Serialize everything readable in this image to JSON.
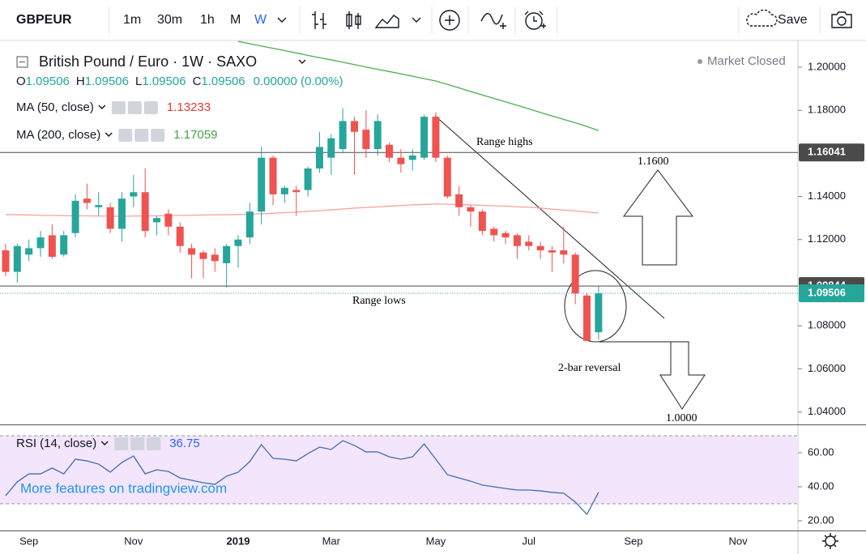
{
  "toolbar": {
    "symbol": "GBPEUR",
    "intervals": [
      "1m",
      "30m",
      "1h",
      "M",
      "W"
    ],
    "save": "Save"
  },
  "chart_data": [
    {
      "type": "candlestick",
      "title": "British Pound / Euro · 1W · SAXO",
      "status": "Market Closed",
      "ohlc_legend": [
        {
          "label": "O",
          "value": "1.09506"
        },
        {
          "label": "H",
          "value": "1.09506"
        },
        {
          "label": "L",
          "value": "1.09506"
        },
        {
          "label": "C",
          "value": "1.09506"
        }
      ],
      "change": "0.00000 (0.00%)",
      "categories": [
        null,
        null,
        "Sep",
        null,
        null,
        null,
        null,
        null,
        null,
        null,
        null,
        "Nov",
        null,
        null,
        null,
        null,
        null,
        null,
        null,
        null,
        "2019",
        null,
        null,
        null,
        null,
        null,
        null,
        null,
        "Mar",
        null,
        null,
        null,
        null,
        null,
        null,
        null,
        null,
        "May",
        null,
        null,
        null,
        null,
        null,
        null,
        null,
        "Jul",
        null,
        null,
        null,
        null,
        null,
        null,
        null,
        null,
        "Sep",
        null,
        null,
        null,
        null,
        null,
        null,
        null,
        null,
        "Nov",
        null,
        null,
        null,
        null,
        null
      ],
      "open": [
        1.115,
        1.105,
        1.113,
        1.116,
        1.122,
        1.113,
        1.123,
        1.139,
        1.135,
        1.135,
        1.125,
        1.14,
        1.142,
        1.128,
        1.132,
        1.126,
        1.116,
        1.114,
        1.113,
        1.109,
        1.117,
        1.121,
        1.133,
        1.158,
        1.141,
        1.143,
        1.143,
        1.153,
        1.158,
        1.162,
        1.175,
        1.171,
        1.162,
        1.164,
        1.158,
        1.157,
        1.158,
        1.177,
        1.158,
        1.141,
        1.135,
        1.133,
        1.125,
        1.123,
        1.122,
        1.119,
        1.117,
        1.115,
        1.115,
        1.113,
        1.094,
        1.077,
        null,
        null,
        null,
        null,
        null,
        null,
        null,
        null,
        null,
        null,
        null,
        null,
        null,
        null,
        null,
        null,
        null
      ],
      "high": [
        1.118,
        1.118,
        1.12,
        1.124,
        1.127,
        1.124,
        1.141,
        1.146,
        1.142,
        1.137,
        1.142,
        1.15,
        1.153,
        1.131,
        1.134,
        1.128,
        1.118,
        1.115,
        1.116,
        1.118,
        1.122,
        1.137,
        1.163,
        1.159,
        1.145,
        1.145,
        1.154,
        1.17,
        1.169,
        1.181,
        1.177,
        1.18,
        1.178,
        1.165,
        1.162,
        1.162,
        1.178,
        1.179,
        1.159,
        1.145,
        1.136,
        1.134,
        1.126,
        1.124,
        1.123,
        1.122,
        1.119,
        1.117,
        1.126,
        1.114,
        1.095,
        1.0984,
        null,
        null,
        null,
        null,
        null,
        null,
        null,
        null,
        null,
        null,
        null,
        null,
        null,
        null,
        null,
        null,
        null
      ],
      "low": [
        1.103,
        1.1,
        1.11,
        1.112,
        1.111,
        1.112,
        1.121,
        1.134,
        1.131,
        1.123,
        1.119,
        1.135,
        1.121,
        1.122,
        1.122,
        1.114,
        1.102,
        1.102,
        1.105,
        1.0977,
        1.107,
        1.118,
        1.127,
        1.136,
        1.137,
        1.131,
        1.14,
        1.151,
        1.15,
        1.16,
        1.15,
        1.158,
        1.159,
        1.156,
        1.151,
        1.152,
        1.157,
        1.156,
        1.139,
        1.131,
        1.126,
        1.122,
        1.119,
        1.118,
        1.111,
        1.115,
        1.111,
        1.105,
        1.109,
        1.09,
        1.073,
        1.0735,
        null,
        null,
        null,
        null,
        null,
        null,
        null,
        null,
        null,
        null,
        null,
        null,
        null,
        null,
        null,
        null,
        null
      ],
      "close": [
        1.105,
        1.117,
        1.116,
        1.121,
        1.112,
        1.122,
        1.138,
        1.137,
        1.136,
        1.125,
        1.139,
        1.142,
        1.124,
        1.13,
        1.126,
        1.117,
        1.113,
        1.111,
        1.11,
        1.117,
        1.12,
        1.133,
        1.158,
        1.141,
        1.144,
        1.142,
        1.153,
        1.163,
        1.167,
        1.175,
        1.17,
        1.162,
        1.175,
        1.158,
        1.155,
        1.159,
        1.177,
        1.158,
        1.14,
        1.135,
        1.133,
        1.124,
        1.122,
        1.121,
        1.117,
        1.117,
        1.115,
        1.114,
        1.113,
        1.095,
        1.073,
        1.09506,
        null,
        null,
        null,
        null,
        null,
        null,
        null,
        null,
        null,
        null,
        null,
        null,
        null,
        null,
        null,
        null,
        null
      ],
      "up_color": "#26a69a",
      "down_color": "#ef5350",
      "series": [
        {
          "name": "MA (50, close)",
          "color": "#f4a29c",
          "label_color": "#e53935",
          "values": [
            1.1316,
            1.1315,
            1.1314,
            1.1313,
            1.1312,
            1.1311,
            1.131,
            1.131,
            1.1309,
            1.1309,
            1.1308,
            1.1309,
            1.131,
            1.131,
            1.1311,
            1.1312,
            1.1313,
            1.1314,
            1.1315,
            1.1315,
            1.1316,
            1.1318,
            1.132,
            1.1322,
            1.1325,
            1.1327,
            1.1331,
            1.1334,
            1.1338,
            1.1342,
            1.1346,
            1.1349,
            1.1352,
            1.1355,
            1.1358,
            1.1361,
            1.1363,
            1.1365,
            1.1364,
            1.1362,
            1.1361,
            1.1359,
            1.1357,
            1.1355,
            1.1352,
            1.135,
            1.1346,
            1.1341,
            1.1337,
            1.1333,
            1.1328,
            1.13233,
            null,
            null,
            null,
            null,
            null,
            null,
            null,
            null,
            null,
            null,
            null,
            null,
            null,
            null,
            null,
            null,
            null
          ]
        },
        {
          "name": "MA (200, close)",
          "color": "#4caf50",
          "label_color": "#43a047",
          "values": [
            null,
            null,
            null,
            null,
            null,
            null,
            null,
            null,
            null,
            null,
            null,
            null,
            null,
            null,
            null,
            null,
            null,
            null,
            null,
            null,
            1.212,
            1.2109,
            1.2098,
            1.2088,
            1.2077,
            1.2066,
            1.2055,
            1.2044,
            1.2034,
            1.2023,
            1.2012,
            1.2001,
            1.199,
            1.198,
            1.1969,
            1.1958,
            1.1947,
            1.1936,
            1.192,
            1.1904,
            1.1887,
            1.1871,
            1.1855,
            1.1839,
            1.1823,
            1.1807,
            1.179,
            1.1774,
            1.1758,
            1.1742,
            1.1725,
            1.17059,
            null,
            null,
            null,
            null,
            null,
            null,
            null,
            null,
            null,
            null,
            null,
            null,
            null,
            null,
            null,
            null,
            null
          ]
        }
      ],
      "price_lines": [
        {
          "value": 1.16041,
          "color": "#4a4a4a"
        },
        {
          "value": 1.09844,
          "color": "#4a4a4a"
        }
      ],
      "last_color": "#26a69a",
      "annotations": [
        "Range highs",
        "Range lows",
        "1.1600",
        "2-bar reversal",
        "1.0000"
      ],
      "ylim": [
        1.0342,
        1.2124
      ],
      "yticks": [
        {
          "value": 1.04,
          "label": "1.04000"
        },
        {
          "value": 1.06,
          "label": "1.06000"
        },
        {
          "value": 1.08,
          "label": "1.08000"
        },
        {
          "value": 1.12,
          "label": "1.12000"
        },
        {
          "value": 1.14,
          "label": "1.14000"
        },
        {
          "value": 1.18,
          "label": "1.18000"
        },
        {
          "value": 1.2,
          "label": "1.20000"
        }
      ],
      "grid": false
    },
    {
      "type": "line",
      "series": [
        {
          "name": "RSI (14, close)",
          "color": "#3d6eb5",
          "values": [
            34.8,
            42.9,
            47.6,
            47.6,
            51,
            47.6,
            56.2,
            55.2,
            53.3,
            48.6,
            54.3,
            58.1,
            47.6,
            50,
            49,
            45.2,
            43.8,
            42.4,
            41.4,
            46.2,
            48.6,
            54.8,
            64.8,
            56.7,
            56.2,
            55.2,
            59.5,
            63.3,
            61.9,
            67.1,
            64.3,
            60.5,
            60.5,
            57.6,
            56.2,
            57.6,
            65.2,
            56.2,
            47.1,
            45.2,
            43.3,
            41,
            40,
            39,
            38.1,
            38.1,
            37.6,
            36.7,
            36.2,
            31,
            23.8,
            36.75,
            null,
            null,
            null,
            null,
            null,
            null,
            null,
            null,
            null,
            null,
            null,
            null,
            null,
            null,
            null,
            null,
            null
          ]
        }
      ],
      "band": [
        30,
        70
      ],
      "band_color": "#f3e5fb",
      "watermark": "More features on tradingview.com",
      "ylim": [
        14.3,
        75.7
      ],
      "yticks": [
        {
          "value": 20,
          "label": "20.00"
        },
        {
          "value": 40,
          "label": "40.00"
        },
        {
          "value": 60,
          "label": "60.00"
        }
      ],
      "grid": false
    }
  ]
}
